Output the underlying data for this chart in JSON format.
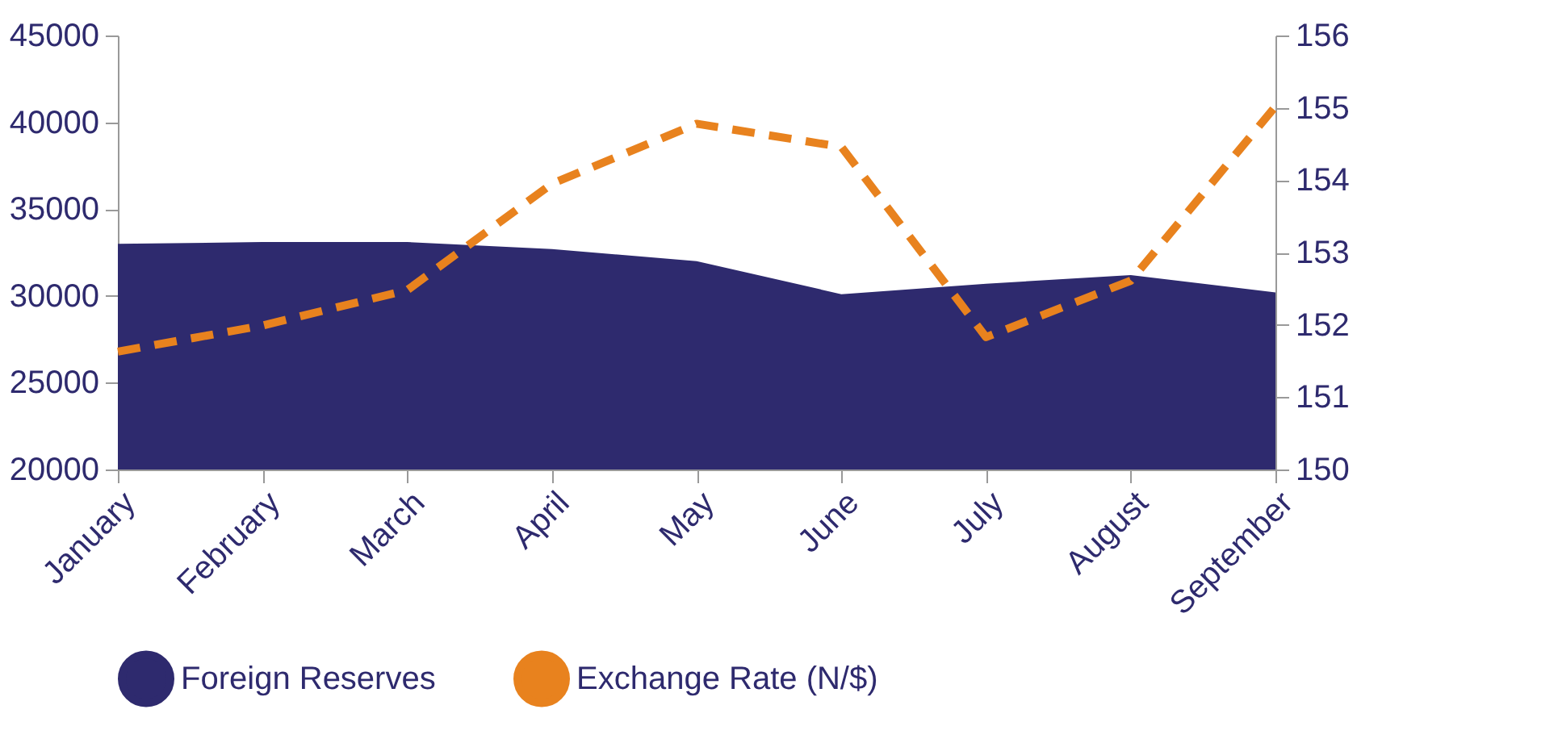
{
  "chart_data": {
    "type": "area",
    "categories": [
      "January",
      "February",
      "March",
      "April",
      "May",
      "June",
      "July",
      "August",
      "September"
    ],
    "series": [
      {
        "name": "Foreign Reserves",
        "color": "#2e2a6e",
        "values": [
          33000,
          33100,
          33100,
          32700,
          32000,
          30100,
          30700,
          31200,
          30200
        ]
      },
      {
        "name": "Exchange Rate (N/$)",
        "type": "line",
        "axis": "y2",
        "color": "#e8821e",
        "line_style": "dashed",
        "values": [
          151.63,
          151.99,
          152.48,
          153.95,
          154.78,
          154.46,
          151.83,
          152.61,
          155.02
        ]
      }
    ],
    "ylim": [
      20000,
      45000
    ],
    "yticks": [
      20000,
      25000,
      30000,
      35000,
      40000,
      45000
    ],
    "y2lim": [
      150,
      156
    ],
    "y2ticks": [
      150,
      151,
      152,
      153,
      154,
      155,
      156
    ],
    "grid": false,
    "legend": "bottom",
    "marker": "none"
  }
}
